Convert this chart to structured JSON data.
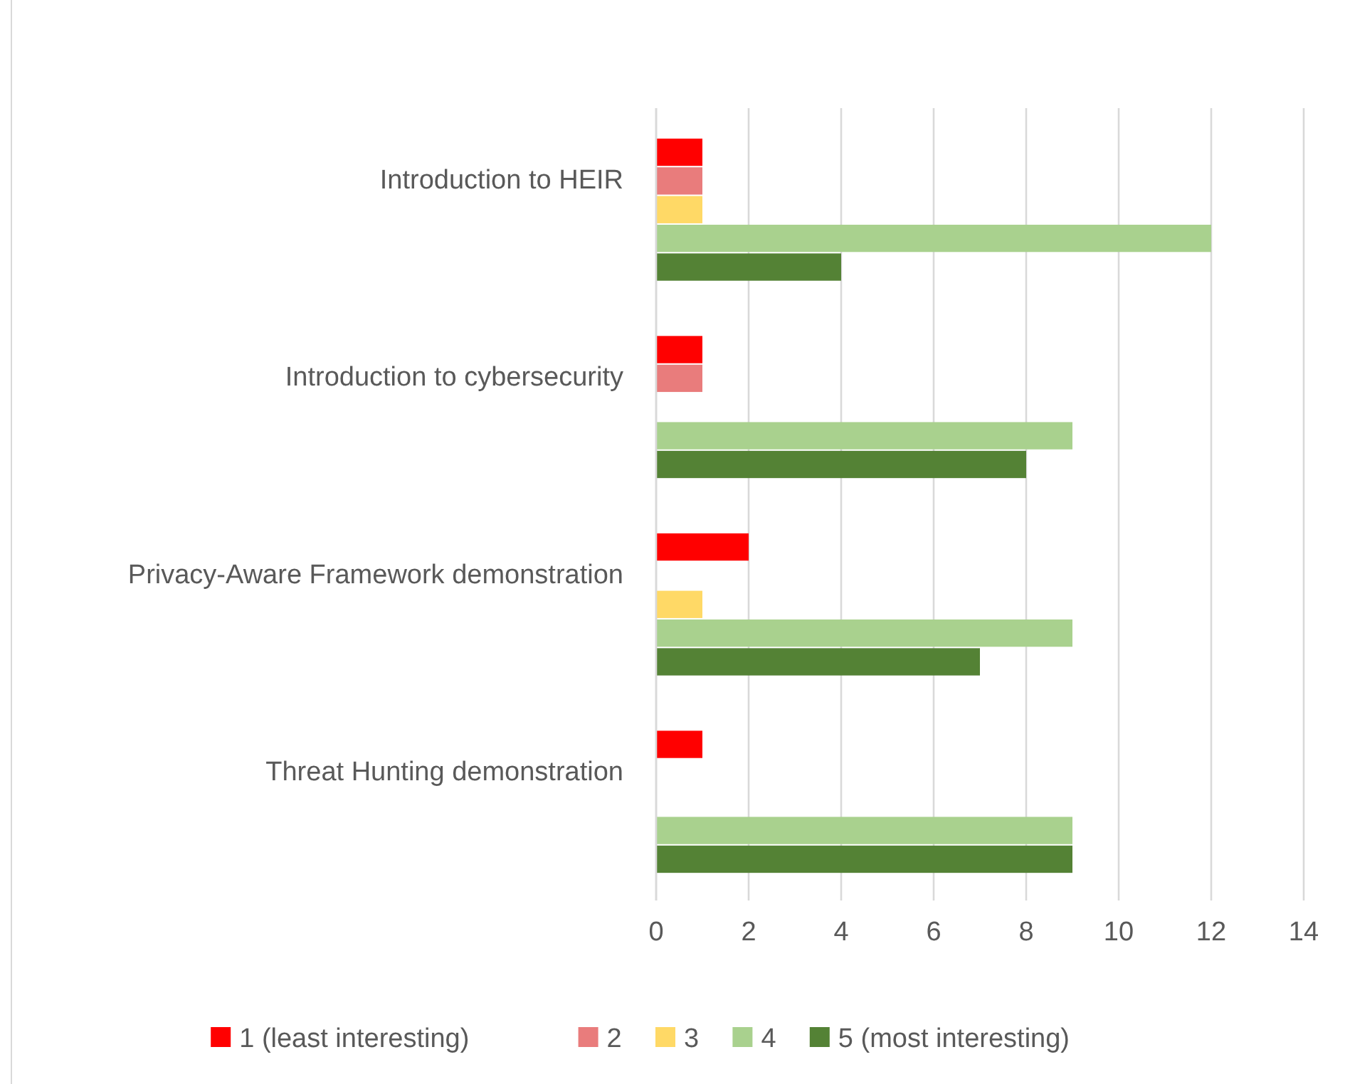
{
  "chart_data": {
    "type": "bar",
    "orientation": "horizontal",
    "categories": [
      "Introduction to HEIR",
      "Introduction to cybersecurity",
      "Privacy-Aware Framework  demonstration",
      "Threat Hunting demonstration"
    ],
    "series": [
      {
        "name": "1 (least interesting)",
        "color": "#ff0000",
        "values": [
          1,
          1,
          2,
          1
        ]
      },
      {
        "name": "2",
        "color": "#e97c7c",
        "values": [
          1,
          1,
          0,
          0
        ]
      },
      {
        "name": "3",
        "color": "#ffd966",
        "values": [
          1,
          0,
          1,
          0
        ]
      },
      {
        "name": "4",
        "color": "#a9d18e",
        "values": [
          12,
          9,
          9,
          9
        ]
      },
      {
        "name": "5 (most interesting)",
        "color": "#548235",
        "values": [
          4,
          8,
          7,
          9
        ]
      }
    ],
    "xlim": [
      0,
      14
    ],
    "xticks": [
      0,
      2,
      4,
      6,
      8,
      10,
      12,
      14
    ],
    "grid": "x",
    "legend": "bottom"
  }
}
